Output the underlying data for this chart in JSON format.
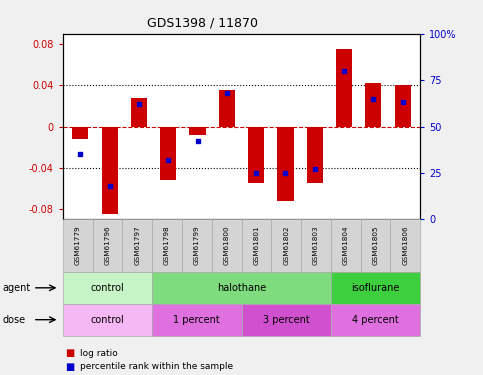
{
  "title": "GDS1398 / 11870",
  "samples": [
    "GSM61779",
    "GSM61796",
    "GSM61797",
    "GSM61798",
    "GSM61799",
    "GSM61800",
    "GSM61801",
    "GSM61802",
    "GSM61803",
    "GSM61804",
    "GSM61805",
    "GSM61806"
  ],
  "log_ratios": [
    -0.012,
    -0.085,
    0.028,
    -0.052,
    -0.008,
    0.035,
    -0.055,
    -0.072,
    -0.055,
    0.075,
    0.042,
    0.04
  ],
  "percentile_ranks": [
    35,
    18,
    62,
    32,
    42,
    68,
    25,
    25,
    27,
    80,
    65,
    63
  ],
  "agent_groups": [
    {
      "label": "control",
      "start": 0,
      "end": 3,
      "color": "#c8f5c8"
    },
    {
      "label": "halothane",
      "start": 3,
      "end": 9,
      "color": "#7edc7e"
    },
    {
      "label": "isoflurane",
      "start": 9,
      "end": 12,
      "color": "#3ecf3e"
    }
  ],
  "dose_groups": [
    {
      "label": "control",
      "start": 0,
      "end": 3,
      "color": "#f5b8f5"
    },
    {
      "label": "1 percent",
      "start": 3,
      "end": 6,
      "color": "#e070e0"
    },
    {
      "label": "3 percent",
      "start": 6,
      "end": 9,
      "color": "#d050d0"
    },
    {
      "label": "4 percent",
      "start": 9,
      "end": 12,
      "color": "#e070e0"
    }
  ],
  "ylim": [
    -0.09,
    0.09
  ],
  "right_ylim": [
    0,
    100
  ],
  "bar_color": "#cc0000",
  "dot_color": "#0000cc",
  "bg_color": "#f0f0f0",
  "plot_bg": "#ffffff",
  "left_axis_color": "#cc0000",
  "right_axis_color": "#0000cc",
  "left_ticks": [
    -0.08,
    -0.04,
    0,
    0.04,
    0.08
  ],
  "right_ticks": [
    0,
    25,
    50,
    75,
    100
  ],
  "right_tick_labels": [
    "0",
    "25",
    "50",
    "75",
    "100%"
  ]
}
